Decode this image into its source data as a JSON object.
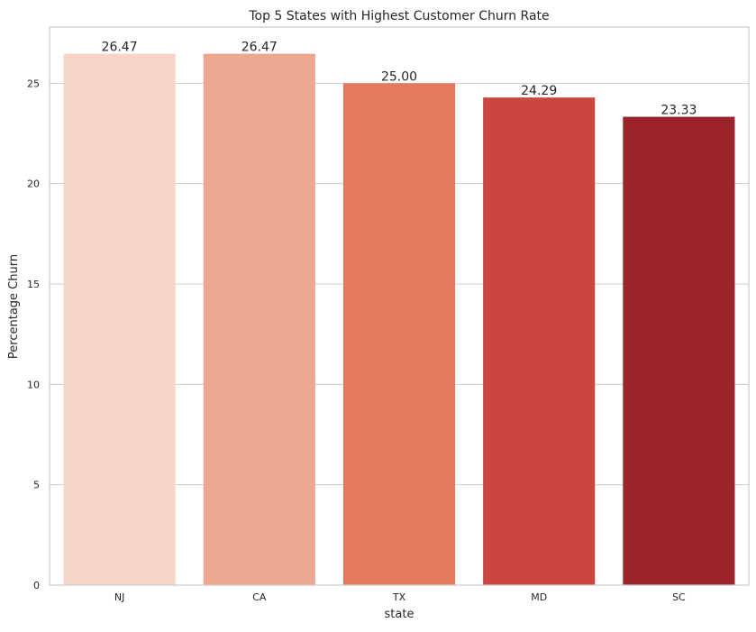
{
  "chart_data": {
    "type": "bar",
    "title": "Top 5 States with Highest Customer Churn Rate",
    "xlabel": "state",
    "ylabel": "Percentage Churn",
    "categories": [
      "NJ",
      "CA",
      "TX",
      "MD",
      "SC"
    ],
    "values": [
      26.47,
      26.47,
      25.0,
      24.29,
      23.33
    ],
    "value_labels": [
      "26.47",
      "26.47",
      "25.00",
      "24.29",
      "23.33"
    ],
    "colors": [
      "#f7d6c8",
      "#eda68f",
      "#e47960",
      "#cc4640",
      "#9b232a"
    ],
    "ylim": [
      0,
      27.8
    ],
    "yticks": [
      0,
      5,
      10,
      15,
      20,
      25
    ],
    "grid": "horizontal",
    "legend": "none"
  }
}
